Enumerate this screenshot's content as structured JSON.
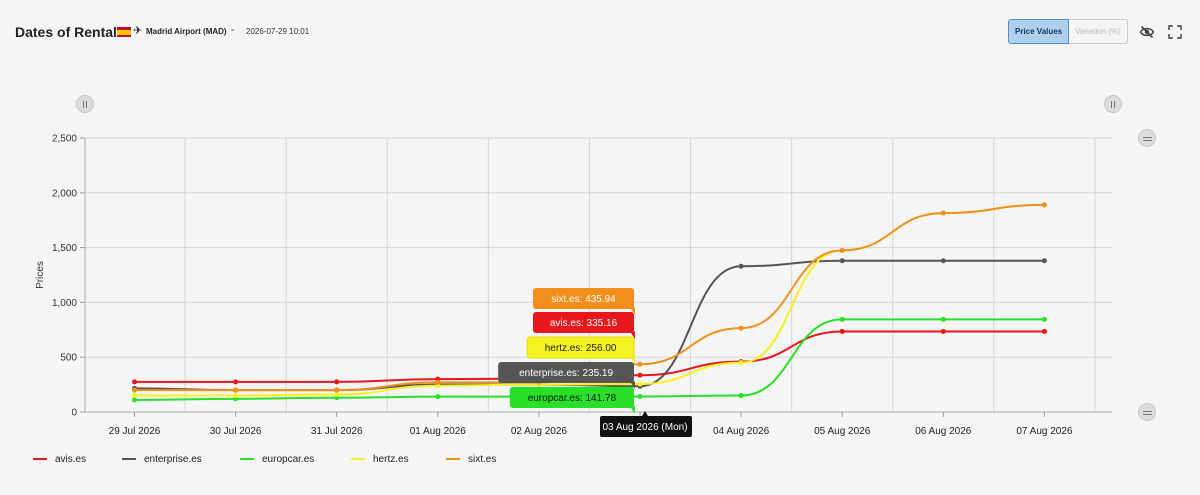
{
  "header": {
    "title": "Dates of Rental",
    "location": "Madrid Airport (MAD)",
    "separator": "-",
    "datetime": "2026-07-29 10:01",
    "buttons": {
      "price_values": "Price Values",
      "variation": "Variation (%)"
    },
    "icons": [
      "eye-slash-icon",
      "fullscreen-icon"
    ]
  },
  "colors": {
    "avis": "#e8161d",
    "enterprise": "#555555",
    "europcar": "#27e027",
    "hertz": "#f3f322",
    "sixt": "#f28e1c"
  },
  "chart_data": {
    "type": "line",
    "ylabel": "Prices",
    "ylim": [
      0,
      2500
    ],
    "yticks": [
      0,
      500,
      1000,
      1500,
      2000,
      2500
    ],
    "grid": true,
    "legend_position": "bottom-left",
    "categories": [
      "29 Jul 2026",
      "30 Jul 2026",
      "31 Jul 2026",
      "01 Aug 2026",
      "02 Aug 2026",
      "03 Aug 2026",
      "04 Aug 2026",
      "05 Aug 2026",
      "06 Aug 2026",
      "07 Aug 2026"
    ],
    "series": [
      {
        "name": "avis.es",
        "key": "avis",
        "values": [
          275,
          275,
          275,
          300,
          305,
          335.16,
          460,
          735,
          735,
          735
        ]
      },
      {
        "name": "enterprise.es",
        "key": "enterprise",
        "values": [
          215,
          200,
          200,
          250,
          250,
          235.19,
          1330,
          1380,
          1380,
          1380
        ]
      },
      {
        "name": "europcar.es",
        "key": "europcar",
        "values": [
          110,
          120,
          130,
          140,
          140,
          141.78,
          150,
          845,
          845,
          845
        ]
      },
      {
        "name": "hertz.es",
        "key": "hertz",
        "values": [
          150,
          150,
          160,
          240,
          250,
          256.0,
          450,
          1475,
          1815,
          1890
        ]
      },
      {
        "name": "sixt.es",
        "key": "sixt",
        "values": [
          200,
          200,
          200,
          270,
          270,
          435.94,
          765,
          1475,
          1815,
          1890
        ]
      }
    ],
    "tooltip": {
      "category": "03 Aug 2026 (Mon)",
      "entries": [
        {
          "key": "sixt",
          "label": "sixt.es: 435.94"
        },
        {
          "key": "avis",
          "label": "avis.es: 335.16"
        },
        {
          "key": "hertz",
          "label": "hertz.es: 256.00"
        },
        {
          "key": "enterprise",
          "label": "enterprise.es: 235.19"
        },
        {
          "key": "europcar",
          "label": "europcar.es: 141.78"
        }
      ]
    }
  }
}
